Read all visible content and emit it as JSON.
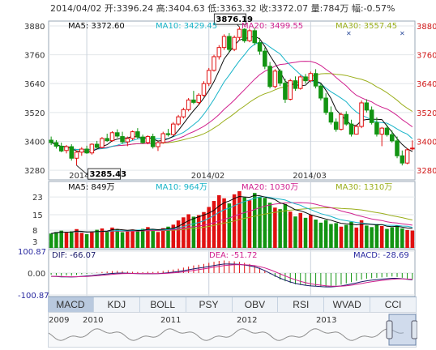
{
  "header": {
    "text": "2014/04/02 开:3396.24  高:3404.63  低:3363.32  收:3372.07  量:784万  幅:-0.57%"
  },
  "colors": {
    "up": "#e01010",
    "down": "#129412",
    "ma5": "#0a0a0a",
    "ma10": "#18b4c8",
    "ma20": "#d0208e",
    "ma30": "#9aae1a"
  },
  "price_panel": {
    "legend": {
      "ma5": "MA5: 3372.60",
      "ma10": "MA10: 3429.45",
      "ma20": "MA20: 3499.55",
      "ma30": "MA30: 3557.45"
    },
    "high_callout": "3876.19",
    "low_callout": "3285.43"
  },
  "volume_panel": {
    "legend": {
      "ma5": "MA5: 849万",
      "ma10": "MA10: 964万",
      "ma20": "MA20: 1030万",
      "ma30": "MA30: 1310万"
    }
  },
  "macd_panel": {
    "legend": {
      "dif": "DIF: -66.07",
      "dea": "DEA: -51.72",
      "macd": "MACD: -28.69"
    }
  },
  "tabs": [
    "MACD",
    "KDJ",
    "BOLL",
    "PSY",
    "OBV",
    "RSI",
    "WVAD",
    "CCI"
  ],
  "active_tab": "MACD",
  "navigator": {
    "years": [
      "2009",
      "2010",
      "2011",
      "2012",
      "2013"
    ]
  },
  "chart_data": [
    {
      "type": "candlestick",
      "y_ticks": [
        3280,
        3400,
        3520,
        3640,
        3760,
        3880
      ],
      "ylim": [
        3240,
        3900
      ],
      "x_ticks": [
        "2014/01",
        "2014/02",
        "2014/03"
      ],
      "x_tick_index": [
        7,
        31,
        51
      ],
      "ohlc": [
        [
          3405,
          3420,
          3385,
          3395
        ],
        [
          3395,
          3405,
          3370,
          3380
        ],
        [
          3380,
          3395,
          3355,
          3360
        ],
        [
          3362,
          3385,
          3350,
          3378
        ],
        [
          3378,
          3388,
          3320,
          3330
        ],
        [
          3330,
          3362,
          3300,
          3355
        ],
        [
          3355,
          3376,
          3340,
          3368
        ],
        [
          3368,
          3382,
          3348,
          3352
        ],
        [
          3352,
          3392,
          3345,
          3388
        ],
        [
          3388,
          3402,
          3370,
          3375
        ],
        [
          3375,
          3418,
          3370,
          3412
        ],
        [
          3412,
          3432,
          3398,
          3403
        ],
        [
          3403,
          3442,
          3398,
          3436
        ],
        [
          3436,
          3450,
          3415,
          3422
        ],
        [
          3420,
          3440,
          3390,
          3398
        ],
        [
          3398,
          3420,
          3380,
          3412
        ],
        [
          3412,
          3445,
          3405,
          3440
        ],
        [
          3440,
          3455,
          3410,
          3418
        ],
        [
          3418,
          3428,
          3390,
          3395
        ],
        [
          3395,
          3425,
          3388,
          3420
        ],
        [
          3420,
          3432,
          3370,
          3378
        ],
        [
          3378,
          3400,
          3360,
          3395
        ],
        [
          3395,
          3440,
          3390,
          3432
        ],
        [
          3432,
          3452,
          3420,
          3428
        ],
        [
          3428,
          3480,
          3425,
          3472
        ],
        [
          3472,
          3510,
          3465,
          3502
        ],
        [
          3502,
          3540,
          3495,
          3532
        ],
        [
          3532,
          3580,
          3525,
          3572
        ],
        [
          3572,
          3610,
          3555,
          3562
        ],
        [
          3562,
          3600,
          3550,
          3592
        ],
        [
          3592,
          3650,
          3585,
          3640
        ],
        [
          3640,
          3705,
          3630,
          3695
        ],
        [
          3695,
          3760,
          3690,
          3752
        ],
        [
          3752,
          3800,
          3740,
          3790
        ],
        [
          3790,
          3845,
          3780,
          3836
        ],
        [
          3836,
          3850,
          3770,
          3782
        ],
        [
          3782,
          3840,
          3775,
          3832
        ],
        [
          3832,
          3876,
          3820,
          3866
        ],
        [
          3866,
          3870,
          3810,
          3818
        ],
        [
          3818,
          3868,
          3812,
          3860
        ],
        [
          3860,
          3872,
          3800,
          3810
        ],
        [
          3810,
          3830,
          3760,
          3775
        ],
        [
          3775,
          3790,
          3700,
          3712
        ],
        [
          3712,
          3730,
          3620,
          3628
        ],
        [
          3628,
          3700,
          3620,
          3692
        ],
        [
          3692,
          3700,
          3630,
          3642
        ],
        [
          3642,
          3660,
          3560,
          3575
        ],
        [
          3575,
          3660,
          3570,
          3652
        ],
        [
          3652,
          3670,
          3610,
          3620
        ],
        [
          3620,
          3675,
          3615,
          3668
        ],
        [
          3668,
          3680,
          3640,
          3652
        ],
        [
          3652,
          3690,
          3645,
          3682
        ],
        [
          3682,
          3700,
          3620,
          3630
        ],
        [
          3630,
          3640,
          3570,
          3580
        ],
        [
          3580,
          3600,
          3510,
          3520
        ],
        [
          3520,
          3545,
          3470,
          3480
        ],
        [
          3480,
          3495,
          3440,
          3450
        ],
        [
          3450,
          3520,
          3445,
          3512
        ],
        [
          3512,
          3525,
          3465,
          3472
        ],
        [
          3472,
          3490,
          3420,
          3430
        ],
        [
          3430,
          3470,
          3428,
          3462
        ],
        [
          3462,
          3570,
          3455,
          3560
        ],
        [
          3560,
          3575,
          3520,
          3530
        ],
        [
          3530,
          3545,
          3470,
          3478
        ],
        [
          3478,
          3500,
          3420,
          3430
        ],
        [
          3430,
          3460,
          3380,
          3455
        ],
        [
          3455,
          3470,
          3420,
          3428
        ],
        [
          3428,
          3445,
          3395,
          3402
        ],
        [
          3402,
          3420,
          3330,
          3340
        ],
        [
          3340,
          3362,
          3300,
          3310
        ],
        [
          3310,
          3372,
          3305,
          3365
        ],
        [
          3370,
          3404,
          3363,
          3372
        ]
      ]
    },
    {
      "type": "bar",
      "name": "volume",
      "y_ticks": [
        3,
        8,
        15,
        23
      ],
      "ylim": [
        0,
        30
      ],
      "values": [
        6.5,
        7.2,
        7.8,
        6.9,
        7.5,
        8.5,
        6.8,
        6.2,
        7.4,
        8.2,
        8.8,
        7.5,
        9.2,
        8.4,
        7.1,
        7.6,
        8.3,
        7.9,
        8.6,
        9.4,
        8.1,
        7.2,
        8.9,
        9.6,
        10.5,
        12.4,
        13.8,
        15.2,
        14.1,
        14.8,
        16.2,
        18.5,
        21.2,
        23.8,
        22.4,
        20.1,
        24.2,
        25.6,
        22.8,
        21.5,
        24.8,
        23.1,
        22.6,
        20.4,
        18.2,
        17.5,
        19.8,
        16.4,
        14.2,
        15.8,
        13.6,
        14.9,
        12.8,
        11.4,
        12.6,
        10.8,
        11.2,
        9.6,
        10.4,
        11.8,
        9.2,
        12.5,
        10.1,
        9.4,
        10.8,
        9.9,
        8.6,
        9.3,
        10.2,
        8.8,
        8.1,
        7.84
      ]
    },
    {
      "type": "bar",
      "name": "MACD",
      "y_ticks": [
        -100.87,
        0.0,
        100.87
      ],
      "ylim": [
        -100.87,
        100.87
      ],
      "values": [
        -8,
        -10,
        -12,
        -11,
        -12,
        -9,
        -6,
        -4,
        -2,
        2,
        5,
        7,
        9,
        10,
        9,
        7,
        6,
        5,
        4,
        6,
        5,
        7,
        10,
        13,
        16,
        20,
        25,
        30,
        35,
        38,
        42,
        47,
        52,
        56,
        58,
        55,
        54,
        52,
        47,
        42,
        35,
        24,
        10,
        -5,
        -18,
        -30,
        -38,
        -46,
        -52,
        -55,
        -58,
        -60,
        -60,
        -62,
        -64,
        -62,
        -58,
        -54,
        -48,
        -42,
        -36,
        -30,
        -26,
        -24,
        -22,
        -20,
        -18,
        -16,
        -18,
        -22,
        -26,
        -28.69
      ]
    }
  ]
}
